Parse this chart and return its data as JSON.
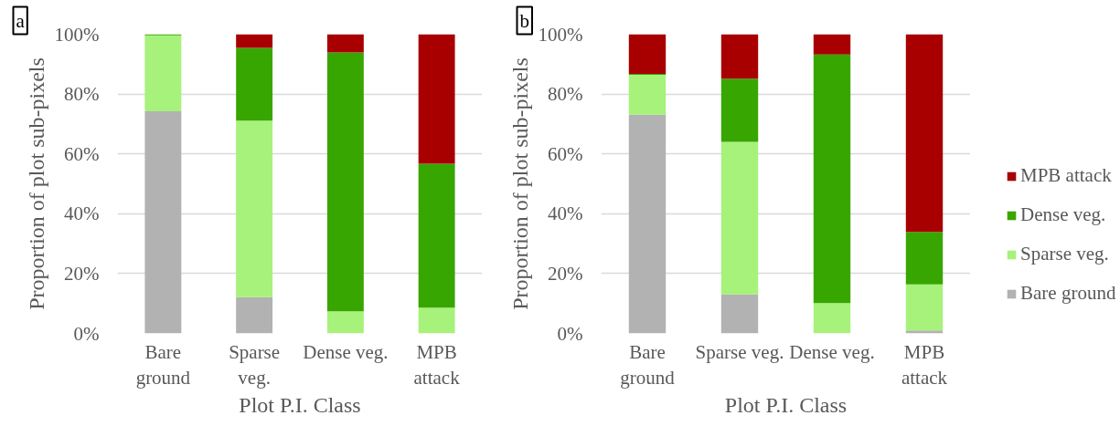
{
  "chart_data": [
    {
      "type": "bar",
      "title": "a",
      "stacked": true,
      "categories": [
        "Bare\nground",
        "Sparse\nveg.",
        "Dense veg.",
        "MPB\nattack"
      ],
      "xlabel": "Plot P.I. Class",
      "ylabel": "Proportion of plot sub-pixels",
      "ylim": [
        0,
        100
      ],
      "yticks": [
        {
          "value": 0,
          "label": "0%"
        },
        {
          "value": 20,
          "label": "20%"
        },
        {
          "value": 40,
          "label": "40%"
        },
        {
          "value": 60,
          "label": "60%"
        },
        {
          "value": 80,
          "label": "80%"
        },
        {
          "value": 100,
          "label": "100%"
        }
      ],
      "grid": "y",
      "series": [
        {
          "color": "#b2b2b2",
          "values": [
            74.2,
            12.1,
            0,
            0
          ]
        },
        {
          "color": "#a6f27a",
          "values": [
            25.4,
            59.0,
            7.4,
            8.6
          ]
        },
        {
          "color": "#38a600",
          "values": [
            0.4,
            24.3,
            86.5,
            48.1
          ]
        },
        {
          "color": "#a80000",
          "values": [
            0,
            4.6,
            6.1,
            43.3
          ]
        }
      ]
    },
    {
      "type": "bar",
      "title": "b",
      "stacked": true,
      "categories": [
        "Bare\nground",
        "Sparse veg.",
        "Dense veg.",
        "MPB\nattack"
      ],
      "xlabel": "Plot P.I. Class",
      "ylabel": "Proportion of plot sub-pixels",
      "ylim": [
        0,
        100
      ],
      "yticks": [
        {
          "value": 0,
          "label": "0%"
        },
        {
          "value": 20,
          "label": "20%"
        },
        {
          "value": 40,
          "label": "40%"
        },
        {
          "value": 60,
          "label": "60%"
        },
        {
          "value": 80,
          "label": "80%"
        },
        {
          "value": 100,
          "label": "100%"
        }
      ],
      "grid": "y",
      "legend": "right",
      "series": [
        {
          "name": "Bare ground",
          "color": "#b2b2b2",
          "values": [
            73.1,
            13.0,
            0,
            1.0
          ]
        },
        {
          "name": "Sparse veg.",
          "color": "#a6f27a",
          "values": [
            13.3,
            51.0,
            10.1,
            15.4
          ]
        },
        {
          "name": "Dense veg.",
          "color": "#38a600",
          "values": [
            0.3,
            21.1,
            83.1,
            17.5
          ]
        },
        {
          "name": "MPB attack",
          "color": "#a80000",
          "values": [
            13.3,
            14.9,
            6.8,
            66.1
          ]
        }
      ]
    }
  ]
}
